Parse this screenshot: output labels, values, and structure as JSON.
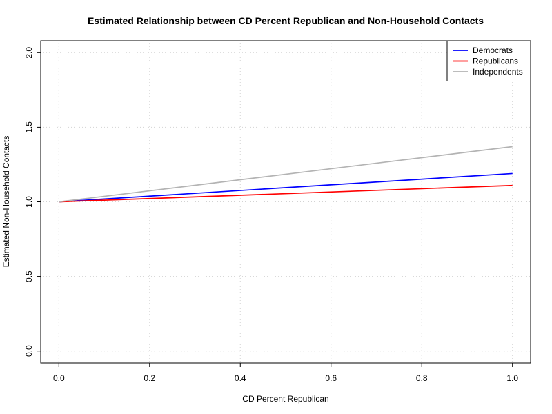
{
  "chart_data": {
    "type": "line",
    "title": "Estimated Relationship between CD Percent Republican and Non-Household Contacts",
    "xlabel": "CD Percent Republican",
    "ylabel": "Estimated Non-Household Contacts",
    "xlim": [
      -0.04,
      1.04
    ],
    "ylim": [
      -0.08,
      2.08
    ],
    "x_ticks": [
      0.0,
      0.2,
      0.4,
      0.6,
      0.8,
      1.0
    ],
    "x_tick_labels": [
      "0.0",
      "0.2",
      "0.4",
      "0.6",
      "0.8",
      "1.0"
    ],
    "y_ticks": [
      0.0,
      0.5,
      1.0,
      1.5,
      2.0
    ],
    "y_tick_labels": [
      "0.0",
      "0.5",
      "1.0",
      "1.5",
      "2.0"
    ],
    "grid": true,
    "legend_position": "top-right",
    "series": [
      {
        "name": "Democrats",
        "color": "#0000ff",
        "x": [
          0.0,
          1.0
        ],
        "y": [
          1.0,
          1.19
        ]
      },
      {
        "name": "Republicans",
        "color": "#ff0000",
        "x": [
          0.0,
          1.0
        ],
        "y": [
          1.0,
          1.11
        ]
      },
      {
        "name": "Independents",
        "color": "#b3b3b3",
        "x": [
          0.0,
          1.0
        ],
        "y": [
          1.0,
          1.37
        ]
      }
    ]
  }
}
